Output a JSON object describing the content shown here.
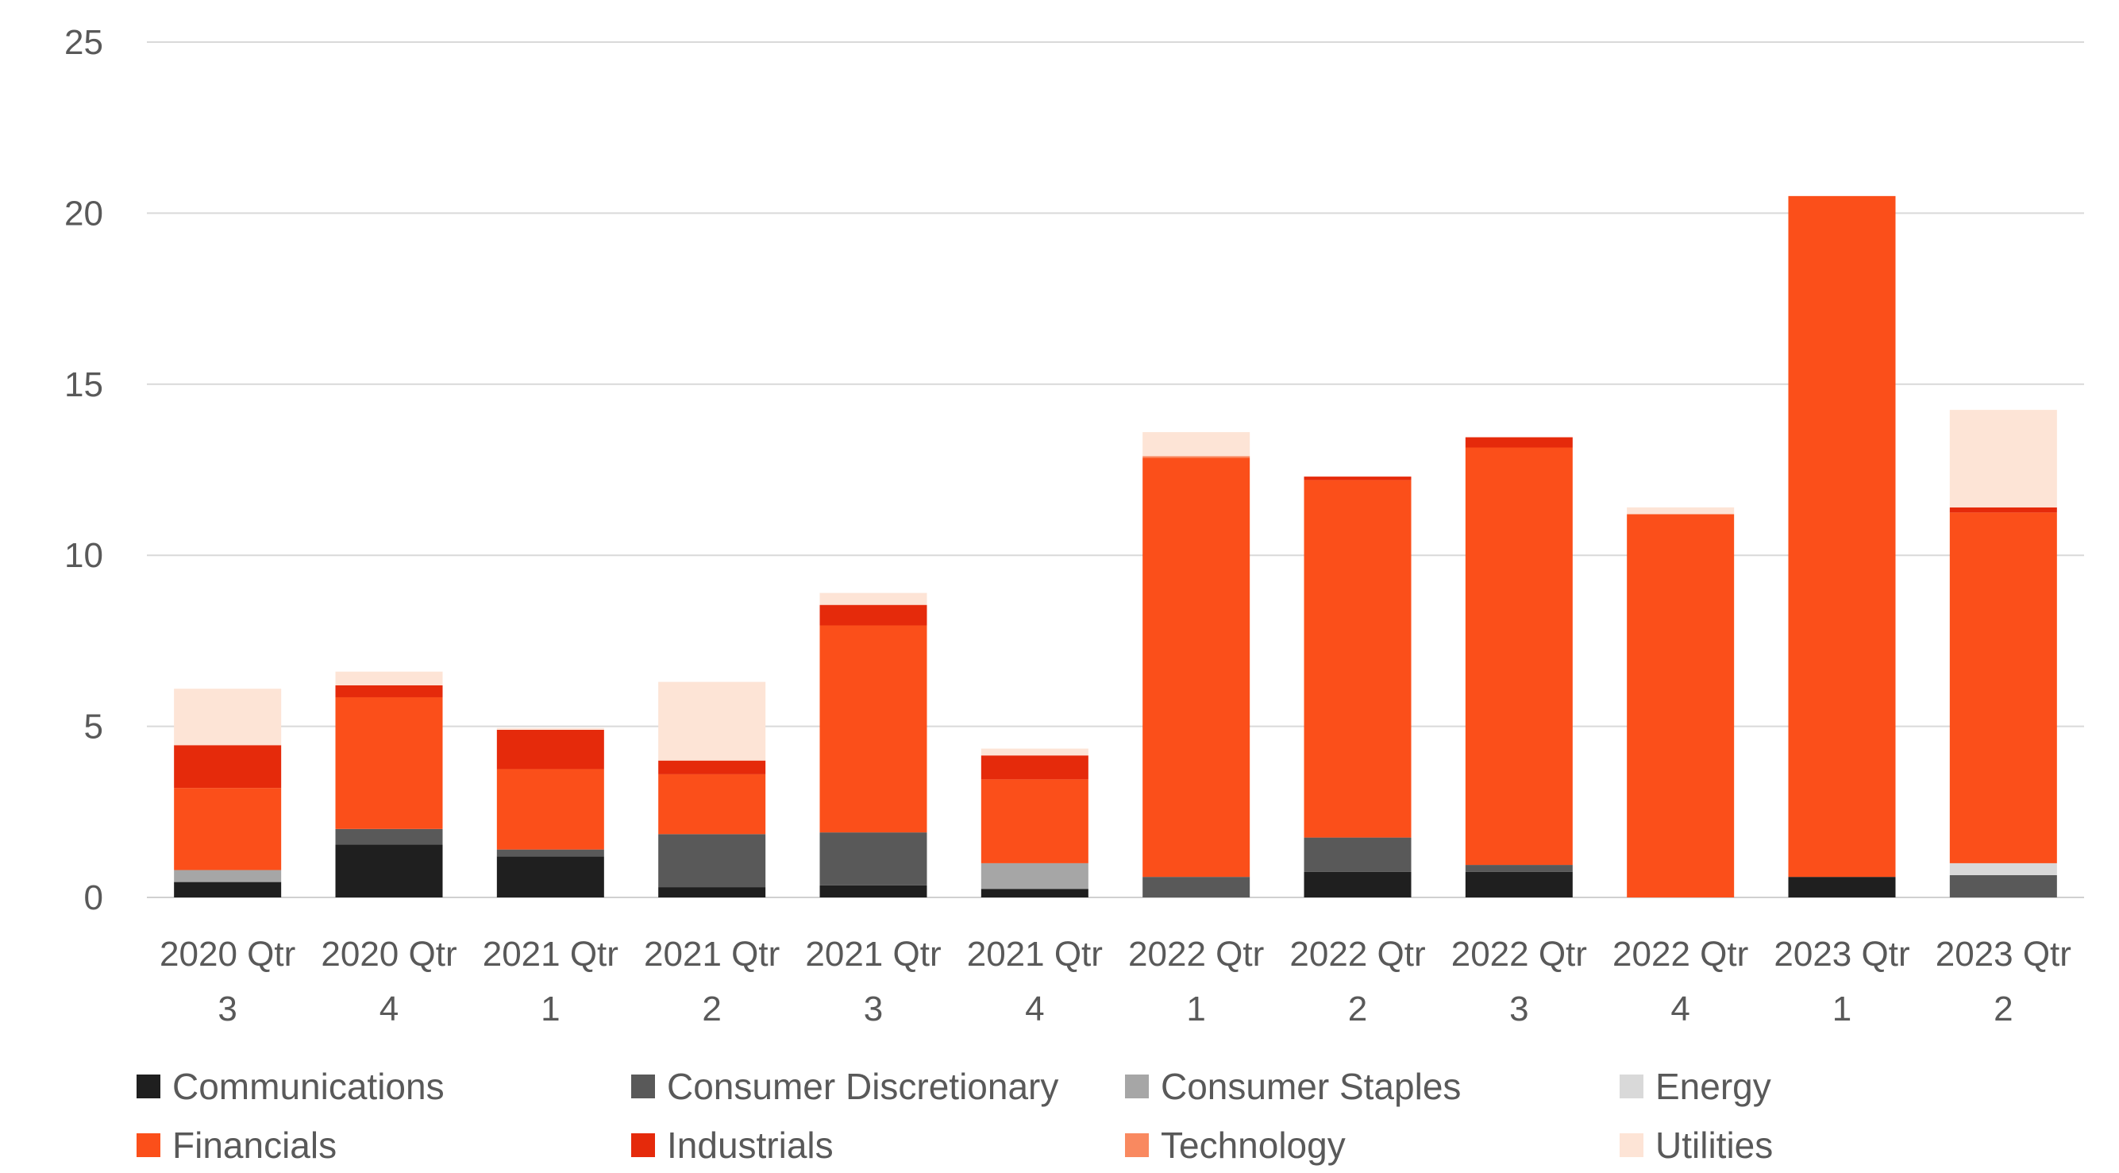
{
  "chart_data": {
    "type": "bar",
    "stacked": true,
    "title": "",
    "xlabel": "",
    "ylabel": "",
    "ylim": [
      0,
      25
    ],
    "yticks": [
      0,
      5,
      10,
      15,
      20,
      25
    ],
    "grid": true,
    "legend_position": "bottom",
    "categories": [
      [
        "2020 Qtr",
        "3"
      ],
      [
        "2020 Qtr",
        "4"
      ],
      [
        "2021 Qtr",
        "1"
      ],
      [
        "2021 Qtr",
        "2"
      ],
      [
        "2021 Qtr",
        "3"
      ],
      [
        "2021 Qtr",
        "4"
      ],
      [
        "2022 Qtr",
        "1"
      ],
      [
        "2022 Qtr",
        "2"
      ],
      [
        "2022 Qtr",
        "3"
      ],
      [
        "2022 Qtr",
        "4"
      ],
      [
        "2023 Qtr",
        "1"
      ],
      [
        "2023 Qtr",
        "2"
      ]
    ],
    "series": [
      {
        "name": "Communications",
        "color": "#1f1f1f",
        "values": [
          0.45,
          1.55,
          1.2,
          0.3,
          0.35,
          0.25,
          0,
          0.75,
          0.75,
          0,
          0.6,
          0
        ]
      },
      {
        "name": "Consumer Discretionary",
        "color": "#595959",
        "values": [
          0,
          0.45,
          0.2,
          1.55,
          1.55,
          0,
          0.6,
          1.0,
          0.2,
          0,
          0,
          0.65
        ]
      },
      {
        "name": "Consumer Staples",
        "color": "#a6a6a6",
        "values": [
          0.35,
          0,
          0,
          0,
          0,
          0.75,
          0,
          0,
          0,
          0,
          0,
          0
        ]
      },
      {
        "name": "Energy",
        "color": "#d9d9d9",
        "values": [
          0,
          0,
          0,
          0,
          0,
          0,
          0,
          0,
          0,
          0,
          0,
          0.35
        ]
      },
      {
        "name": "Financials",
        "color": "#fb4f1a",
        "values": [
          2.4,
          3.85,
          2.35,
          1.75,
          6.05,
          2.45,
          12.25,
          10.45,
          12.2,
          11.2,
          19.9,
          10.25
        ]
      },
      {
        "name": "Industrials",
        "color": "#e52a0b",
        "values": [
          1.25,
          0.35,
          1.15,
          0.4,
          0.6,
          0.7,
          0,
          0.1,
          0.3,
          0,
          0,
          0.15
        ]
      },
      {
        "name": "Technology",
        "color": "#f98960",
        "values": [
          0,
          0,
          0,
          0,
          0,
          0,
          0.05,
          0,
          0,
          0,
          0,
          0
        ]
      },
      {
        "name": "Utilities",
        "color": "#fde4d6",
        "values": [
          1.65,
          0.4,
          0.05,
          2.3,
          0.35,
          0.2,
          0.7,
          0,
          0,
          0.2,
          0,
          2.85
        ]
      }
    ]
  }
}
